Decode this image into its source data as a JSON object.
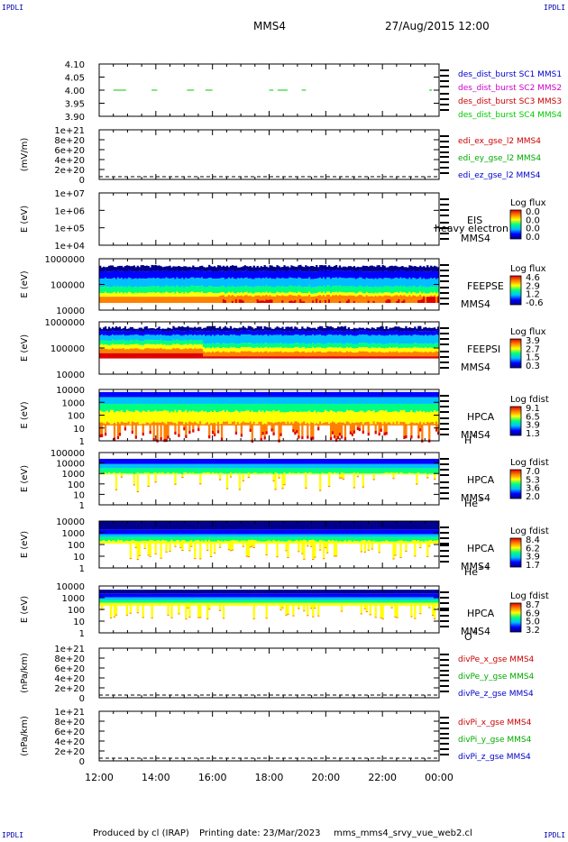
{
  "corner_label": "IPDLI",
  "header": {
    "spacecraft": "MMS4",
    "datetime": "27/Aug/2015 12:00"
  },
  "footer": {
    "produced_by": "Produced by cl (IRAP)",
    "printing_date": "Printing date: 23/Mar/2023",
    "script_name": "mms_mms4_srvy_vue_web2.cl"
  },
  "colors": {
    "spectrogram_scale": [
      "#00008b",
      "#0000ff",
      "#00bfff",
      "#00ff80",
      "#ffff00",
      "#ff8000",
      "#e00000"
    ]
  },
  "chart_data": {
    "type": "stacked time-series panels and spectrograms",
    "x": {
      "ticks": [
        "12:00",
        "14:00",
        "16:00",
        "18:00",
        "20:00",
        "22:00",
        "00:00"
      ],
      "range_hours": [
        12,
        24
      ]
    },
    "panels": [
      {
        "id": "des",
        "ylabel": "",
        "yticks": [
          "4.10",
          "4.05",
          "4.00",
          "3.95",
          "3.90"
        ],
        "ylim": [
          3.9,
          4.1
        ],
        "series": [
          {
            "name": "des_dist_burst SC1 MMS1",
            "color": "#0000cc"
          },
          {
            "name": "des_dist_burst SC2 MMS2",
            "color": "#cc00cc"
          },
          {
            "name": "des_dist_burst SC3 MMS3",
            "color": "#cc0000"
          },
          {
            "name": "des_dist_burst SC4 MMS4",
            "color": "#00cc00"
          }
        ],
        "segments_sc4": [
          [
            12.5,
            12.95
          ],
          [
            13.85,
            14.05
          ],
          [
            15.1,
            15.35
          ],
          [
            15.75,
            16.0
          ],
          [
            18.0,
            18.15
          ],
          [
            18.3,
            18.65
          ],
          [
            19.15,
            19.3
          ],
          [
            23.65,
            23.75
          ]
        ],
        "level": 4.0
      },
      {
        "id": "edi",
        "ylabel": "(mV/m)",
        "yticks": [
          "1e+21",
          "8e+20",
          "6e+20",
          "4e+20",
          "2e+20",
          "0"
        ],
        "series": [
          {
            "name": "edi_ex_gse_l2 MMS4",
            "color": "#cc0000"
          },
          {
            "name": "edi_ey_gse_l2 MMS4",
            "color": "#00aa00"
          },
          {
            "name": "edi_ez_gse_l2 MMS4",
            "color": "#0000cc"
          }
        ]
      },
      {
        "id": "eis",
        "ylabel": "E (eV)",
        "yticks": [
          "1e+07",
          "1e+06",
          "1e+05",
          "1e+04"
        ],
        "right_labels": [
          "EIS",
          "MMS4"
        ],
        "overlay_text": "heavy electron to",
        "colorbar_title": "Log flux",
        "colorbar_ticks": [
          "0.0",
          "0.0",
          "0.0",
          "0.0"
        ]
      },
      {
        "id": "feepse",
        "ylabel": "E (eV)",
        "yticks": [
          "1000000",
          "100000",
          "10000"
        ],
        "right_labels": [
          "FEEPSE",
          "MMS4"
        ],
        "colorbar_title": "Log flux",
        "colorbar_ticks": [
          "4.6",
          "2.9",
          "1.2",
          "-0.6"
        ]
      },
      {
        "id": "feepsi",
        "ylabel": "E (eV)",
        "yticks": [
          "1000000",
          "100000",
          "10000"
        ],
        "right_labels": [
          "FEEPSI",
          "MMS4"
        ],
        "colorbar_title": "Log flux",
        "colorbar_ticks": [
          "3.9",
          "2.7",
          "1.5",
          "0.3"
        ]
      },
      {
        "id": "hpca_h",
        "ylabel": "E (eV)",
        "yticks": [
          "10000",
          "1000",
          "100",
          "10",
          "1"
        ],
        "right_labels": [
          "HPCA",
          "MMS4"
        ],
        "species": "H",
        "species_sup": "+",
        "colorbar_title": "Log fdist",
        "colorbar_ticks": [
          "9.1",
          "6.5",
          "3.9",
          "1.3"
        ]
      },
      {
        "id": "hpca_he",
        "ylabel": "E (eV)",
        "yticks": [
          "100000",
          "10000",
          "1000",
          "100",
          "10",
          "1"
        ],
        "right_labels": [
          "HPCA",
          "MMS4"
        ],
        "species": "He",
        "species_sup": "+",
        "colorbar_title": "Log fdist",
        "colorbar_ticks": [
          "7.0",
          "5.3",
          "3.6",
          "2.0"
        ]
      },
      {
        "id": "hpca_hepp",
        "ylabel": "E (eV)",
        "yticks": [
          "10000",
          "1000",
          "100",
          "10",
          "1"
        ],
        "right_labels": [
          "HPCA",
          "MMS4"
        ],
        "species": "He",
        "species_sup": "++",
        "colorbar_title": "Log fdist",
        "colorbar_ticks": [
          "8.4",
          "6.2",
          "3.9",
          "1.7"
        ]
      },
      {
        "id": "hpca_o",
        "ylabel": "E (eV)",
        "yticks": [
          "10000",
          "1000",
          "100",
          "10",
          "1"
        ],
        "right_labels": [
          "HPCA",
          "MMS4"
        ],
        "species": "O",
        "species_sup": "+",
        "colorbar_title": "Log fdist",
        "colorbar_ticks": [
          "8.7",
          "6.9",
          "5.0",
          "3.2"
        ]
      },
      {
        "id": "divpe",
        "ylabel": "(nPa/km)",
        "yticks": [
          "1e+21",
          "8e+20",
          "6e+20",
          "4e+20",
          "2e+20",
          "0"
        ],
        "series": [
          {
            "name": "divPe_x_gse MMS4",
            "color": "#cc0000"
          },
          {
            "name": "divPe_y_gse MMS4",
            "color": "#00aa00"
          },
          {
            "name": "divPe_z_gse MMS4",
            "color": "#0000cc"
          }
        ]
      },
      {
        "id": "divpi",
        "ylabel": "(nPa/km)",
        "yticks": [
          "1e+21",
          "8e+20",
          "6e+20",
          "4e+20",
          "2e+20",
          "0"
        ],
        "series": [
          {
            "name": "divPi_x_gse MMS4",
            "color": "#cc0000"
          },
          {
            "name": "divPi_y_gse MMS4",
            "color": "#00aa00"
          },
          {
            "name": "divPi_z_gse MMS4",
            "color": "#0000cc"
          }
        ]
      }
    ]
  }
}
